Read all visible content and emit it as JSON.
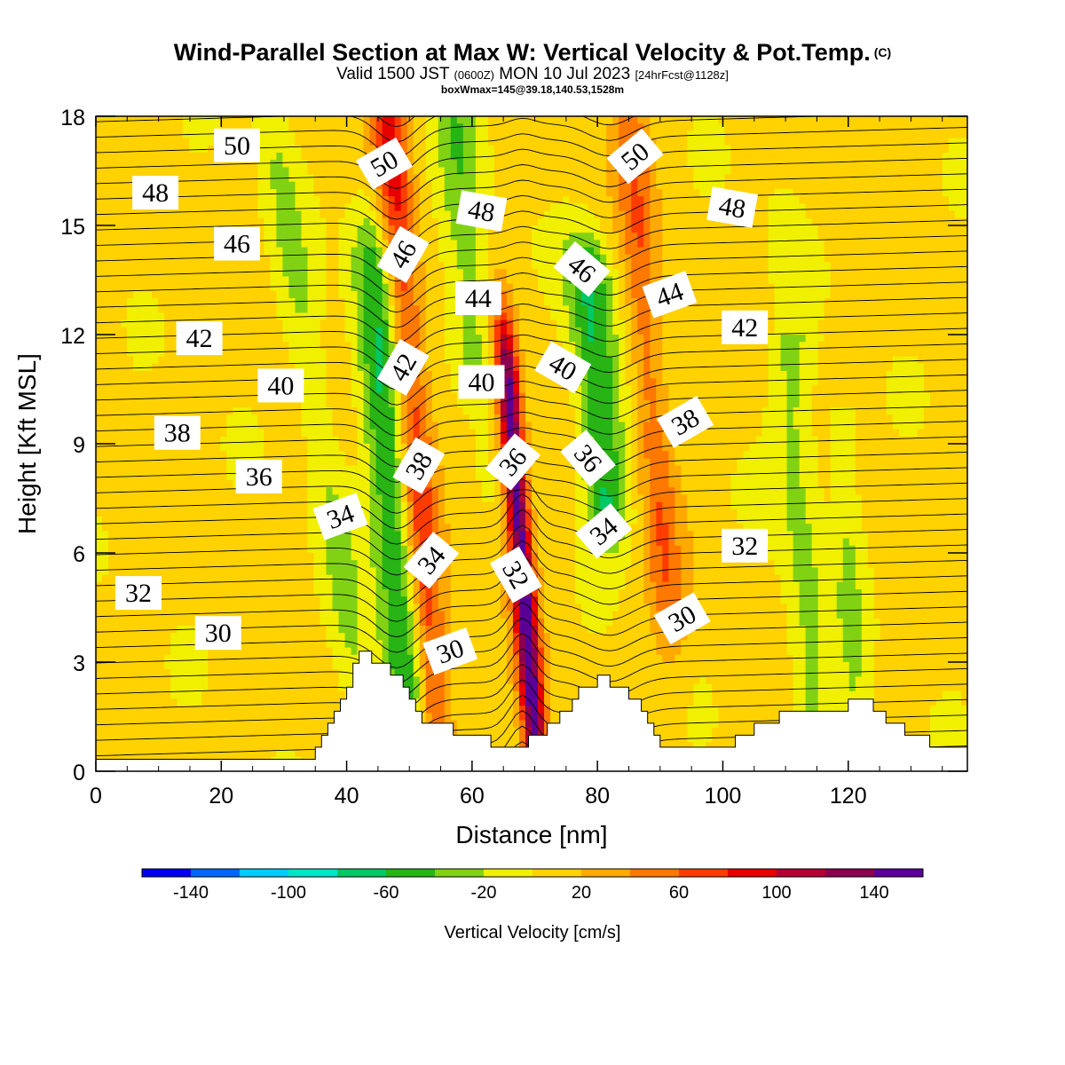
{
  "title": {
    "main": "Wind-Parallel Section at Max W: Vertical Velocity & Pot.Temp.",
    "copyright": "(C)",
    "valid_a": "Valid 1500 JST",
    "valid_z": "(0600Z)",
    "valid_b": "MON 10 Jul 2023",
    "forecast": "[24hrFcst@1128z]",
    "box": "boxWmax=145@39.18,140.53,1528m"
  },
  "chart_data": {
    "type": "heatmap",
    "xlabel": "Distance [nm]",
    "ylabel": "Height [Kft MSL]",
    "xlim": [
      0,
      139
    ],
    "ylim": [
      0,
      18
    ],
    "x_ticks": [
      "0",
      "20",
      "40",
      "60",
      "80",
      "100",
      "120"
    ],
    "y_ticks": [
      "0",
      "3",
      "6",
      "9",
      "12",
      "15",
      "18"
    ],
    "colorbar": {
      "label": "Vertical Velocity [cm/s]",
      "ticks": [
        "-140",
        "-100",
        "-60",
        "-20",
        "20",
        "60",
        "100",
        "140"
      ],
      "bin_edges": [
        -160,
        -140,
        -120,
        -100,
        -80,
        -60,
        -40,
        -20,
        0,
        20,
        40,
        60,
        80,
        100,
        120,
        140,
        160
      ],
      "colors": [
        "#0000ee",
        "#0066ff",
        "#00ccff",
        "#00e6c8",
        "#00c864",
        "#28b414",
        "#82d214",
        "#f0f000",
        "#ffd200",
        "#ffaa00",
        "#ff7800",
        "#ff3c00",
        "#e60000",
        "#b40032",
        "#8c0050",
        "#5a0096"
      ]
    },
    "vertical_velocity_features": [
      {
        "kind": "updraft",
        "center_x": 68,
        "top_kft": 10,
        "bottom_kft": 1,
        "max_cm_s": 145
      },
      {
        "kind": "updraft",
        "center_x": 50,
        "top_kft": 18,
        "bottom_kft": 3,
        "max_cm_s": 75
      },
      {
        "kind": "updraft",
        "center_x": 88,
        "top_kft": 17,
        "bottom_kft": 6,
        "max_cm_s": 45
      },
      {
        "kind": "downdraft",
        "center_x": 47,
        "top_kft": 13,
        "bottom_kft": 3.5,
        "min_cm_s": -70
      },
      {
        "kind": "downdraft",
        "center_x": 80,
        "top_kft": 13,
        "bottom_kft": 8,
        "min_cm_s": -70
      },
      {
        "kind": "downdraft",
        "center_x": 59,
        "top_kft": 17,
        "bottom_kft": 12,
        "min_cm_s": -40
      }
    ],
    "theta_contours": {
      "units": "C",
      "levels": [
        30,
        32,
        34,
        36,
        38,
        40,
        42,
        44,
        46,
        48,
        50
      ],
      "labels": [
        {
          "text": "50",
          "x": 22.5,
          "y": 17.2,
          "rot": 0
        },
        {
          "text": "48",
          "x": 9.5,
          "y": 15.9,
          "rot": 0
        },
        {
          "text": "46",
          "x": 22.5,
          "y": 14.5,
          "rot": 0
        },
        {
          "text": "42",
          "x": 16.5,
          "y": 11.9,
          "rot": 0
        },
        {
          "text": "40",
          "x": 29.5,
          "y": 10.6,
          "rot": 0
        },
        {
          "text": "38",
          "x": 13.0,
          "y": 9.3,
          "rot": 0
        },
        {
          "text": "36",
          "x": 26.0,
          "y": 8.1,
          "rot": 0
        },
        {
          "text": "34",
          "x": 39.0,
          "y": 7.0,
          "rot": -20
        },
        {
          "text": "32",
          "x": 6.8,
          "y": 4.9,
          "rot": 0
        },
        {
          "text": "30",
          "x": 19.5,
          "y": 3.8,
          "rot": 0
        },
        {
          "text": "50",
          "x": 46.0,
          "y": 16.7,
          "rot": -30
        },
        {
          "text": "46",
          "x": 49.0,
          "y": 14.2,
          "rot": -60
        },
        {
          "text": "42",
          "x": 49.0,
          "y": 11.1,
          "rot": -60
        },
        {
          "text": "38",
          "x": 51.5,
          "y": 8.4,
          "rot": -60
        },
        {
          "text": "34",
          "x": 53.5,
          "y": 5.8,
          "rot": -50
        },
        {
          "text": "30",
          "x": 56.5,
          "y": 3.3,
          "rot": -20
        },
        {
          "text": "48",
          "x": 61.5,
          "y": 15.4,
          "rot": 10
        },
        {
          "text": "44",
          "x": 61.0,
          "y": 13.0,
          "rot": 0
        },
        {
          "text": "40",
          "x": 61.5,
          "y": 10.7,
          "rot": 0
        },
        {
          "text": "36",
          "x": 66.5,
          "y": 8.5,
          "rot": -50
        },
        {
          "text": "32",
          "x": 67.0,
          "y": 5.4,
          "rot": 60
        },
        {
          "text": "46",
          "x": 77.5,
          "y": 13.8,
          "rot": 40
        },
        {
          "text": "40",
          "x": 74.5,
          "y": 11.1,
          "rot": 30
        },
        {
          "text": "36",
          "x": 78.5,
          "y": 8.6,
          "rot": 50
        },
        {
          "text": "34",
          "x": 81.0,
          "y": 6.6,
          "rot": -40
        },
        {
          "text": "50",
          "x": 86.0,
          "y": 16.9,
          "rot": -40
        },
        {
          "text": "44",
          "x": 91.5,
          "y": 13.1,
          "rot": -20
        },
        {
          "text": "38",
          "x": 94.0,
          "y": 9.6,
          "rot": -30
        },
        {
          "text": "30",
          "x": 93.5,
          "y": 4.2,
          "rot": -30
        },
        {
          "text": "48",
          "x": 101.5,
          "y": 15.5,
          "rot": 10
        },
        {
          "text": "42",
          "x": 103.5,
          "y": 12.2,
          "rot": 0
        },
        {
          "text": "32",
          "x": 103.5,
          "y": 6.2,
          "rot": 0
        }
      ]
    },
    "terrain_kft": [
      [
        0,
        0.35
      ],
      [
        34,
        0.35
      ],
      [
        35.5,
        0.65
      ],
      [
        39,
        2.0
      ],
      [
        42,
        3.3
      ],
      [
        48,
        2.6
      ],
      [
        51,
        1.5
      ],
      [
        54,
        1.3
      ],
      [
        58,
        1.1
      ],
      [
        65,
        0.65
      ],
      [
        68,
        0.65
      ],
      [
        69,
        1.0
      ],
      [
        73,
        1.3
      ],
      [
        77,
        2.2
      ],
      [
        80,
        2.6
      ],
      [
        84,
        2.3
      ],
      [
        87,
        1.7
      ],
      [
        90,
        0.65
      ],
      [
        100,
        0.65
      ],
      [
        102,
        1.0
      ],
      [
        106,
        1.3
      ],
      [
        111,
        1.7
      ],
      [
        118,
        1.7
      ],
      [
        122,
        2.0
      ],
      [
        127,
        1.3
      ],
      [
        130,
        1.0
      ],
      [
        136,
        0.65
      ],
      [
        139,
        0.65
      ]
    ]
  }
}
